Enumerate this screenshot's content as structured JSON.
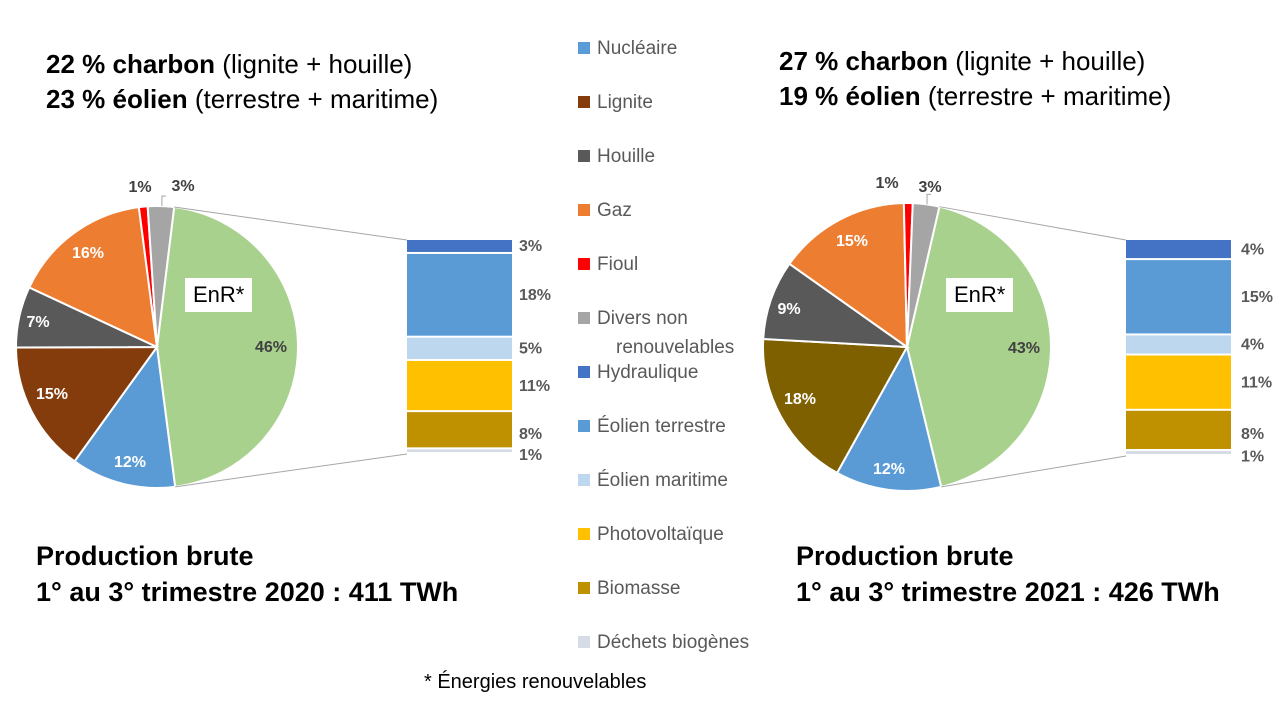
{
  "panels": [
    {
      "id": "2020",
      "headline": {
        "line1_bold": "22 % charbon",
        "line1_rest": " (lignite + houille)",
        "line2_bold": "23 % éolien",
        "line2_rest": " (terrestre + maritime)"
      },
      "footer": {
        "line1": "Production brute",
        "line2": "1° au 3° trimestre 2020 : 411 TWh"
      },
      "enr_label": "EnR*"
    },
    {
      "id": "2021",
      "headline": {
        "line1_bold": "27 % charbon",
        "line1_rest": " (lignite + houille)",
        "line2_bold": "19 % éolien",
        "line2_rest": " (terrestre + maritime)"
      },
      "footer": {
        "line1": "Production brute",
        "line2": "1° au 3° trimestre 2021 : 426 TWh"
      },
      "enr_label": "EnR*"
    }
  ],
  "legend": [
    {
      "label": "Nucléaire",
      "color": "#5b9bd5"
    },
    {
      "label": "Lignite",
      "color": "#843c0c"
    },
    {
      "label": "Houille",
      "color": "#595959"
    },
    {
      "label": "Gaz",
      "color": "#ed7d31"
    },
    {
      "label": "Fioul",
      "color": "#ff0000"
    },
    {
      "label": "Divers non renouvelables",
      "color": "#a5a5a5"
    },
    {
      "label": "Hydraulique",
      "color": "#4472c4"
    },
    {
      "label": "Éolien terrestre",
      "color": "#5b9bd5"
    },
    {
      "label": "Éolien maritime",
      "color": "#bdd7ee"
    },
    {
      "label": "Photovoltaïque",
      "color": "#ffc000"
    },
    {
      "label": "Biomasse",
      "color": "#bf9000"
    },
    {
      "label": "Déchets biogènes",
      "color": "#d6dce5"
    }
  ],
  "footnote": "* Énergies renouvelables",
  "chart_data": [
    {
      "type": "pie",
      "title": "Production brute 1° au 3° trimestre 2020 : 411 TWh",
      "total_twh": 411,
      "categories": [
        "EnR*",
        "Nucléaire",
        "Lignite",
        "Houille",
        "Gaz",
        "Fioul",
        "Divers non renouvelables"
      ],
      "values": [
        46,
        12,
        15,
        7,
        16,
        1,
        3
      ],
      "labels": [
        "46%",
        "12%",
        "15%",
        "7%",
        "16%",
        "1%",
        "3%"
      ],
      "colors": [
        "#a9d18e",
        "#5b9bd5",
        "#843c0c",
        "#595959",
        "#ed7d31",
        "#ff0000",
        "#a5a5a5"
      ],
      "breakdown": {
        "type": "stacked_bar",
        "of": "EnR*",
        "categories": [
          "Hydraulique",
          "Éolien terrestre",
          "Éolien maritime",
          "Photovoltaïque",
          "Biomasse",
          "Déchets biogènes"
        ],
        "values": [
          3,
          18,
          5,
          11,
          8,
          1
        ],
        "labels": [
          "3%",
          "18%",
          "5%",
          "11%",
          "8%",
          "1%"
        ],
        "colors": [
          "#4472c4",
          "#5b9bd5",
          "#bdd7ee",
          "#ffc000",
          "#bf9000",
          "#d6dce5"
        ]
      }
    },
    {
      "type": "pie",
      "title": "Production brute 1° au 3° trimestre 2021 : 426 TWh",
      "total_twh": 426,
      "categories": [
        "EnR*",
        "Nucléaire",
        "Lignite",
        "Houille",
        "Gaz",
        "Fioul",
        "Divers non renouvelables"
      ],
      "values": [
        43,
        12,
        18,
        9,
        15,
        1,
        3
      ],
      "labels": [
        "43%",
        "12%",
        "18%",
        "9%",
        "15%",
        "1%",
        "3%"
      ],
      "colors": [
        "#a9d18e",
        "#5b9bd5",
        "#7f6000",
        "#595959",
        "#ed7d31",
        "#ff0000",
        "#a5a5a5"
      ],
      "breakdown": {
        "type": "stacked_bar",
        "of": "EnR*",
        "categories": [
          "Hydraulique",
          "Éolien terrestre",
          "Éolien maritime",
          "Photovoltaïque",
          "Biomasse",
          "Déchets biogènes"
        ],
        "values": [
          4,
          15,
          4,
          11,
          8,
          1
        ],
        "labels": [
          "4%",
          "15%",
          "4%",
          "11%",
          "8%",
          "1%"
        ],
        "colors": [
          "#4472c4",
          "#5b9bd5",
          "#bdd7ee",
          "#ffc000",
          "#bf9000",
          "#d6dce5"
        ]
      }
    }
  ]
}
